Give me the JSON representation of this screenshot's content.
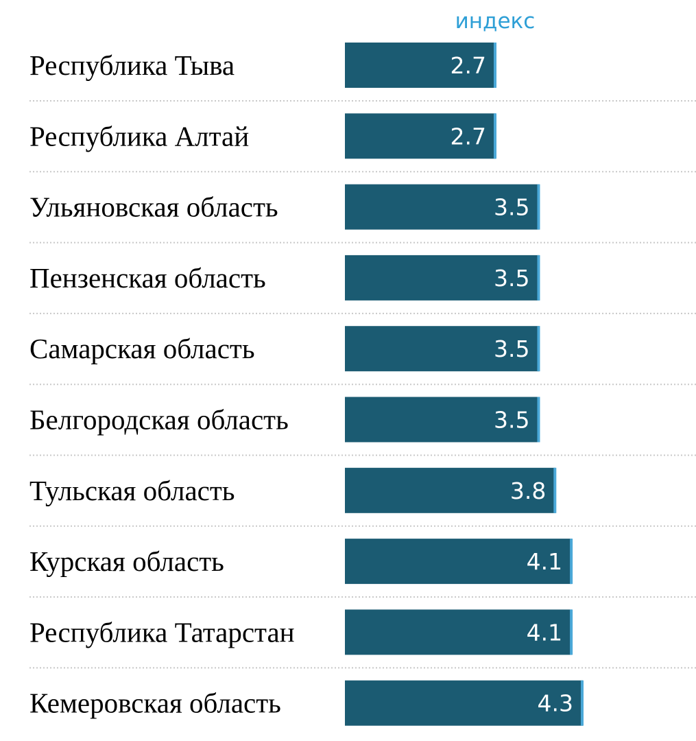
{
  "chart_data": {
    "type": "bar",
    "orientation": "horizontal",
    "column_header": "индекс",
    "categories": [
      "Республика Тыва",
      "Республика Алтай",
      "Ульяновская область",
      "Пензенская область",
      "Самарская область",
      "Белгородская область",
      "Тульская область",
      "Курская область",
      "Республика Татарстан",
      "Кемеровская область"
    ],
    "values": [
      2.7,
      2.7,
      3.5,
      3.5,
      3.5,
      3.5,
      3.8,
      4.1,
      4.1,
      4.3
    ],
    "value_labels": [
      "2.7",
      "2.7",
      "3.5",
      "3.5",
      "3.5",
      "3.5",
      "3.8",
      "4.1",
      "4.1",
      "4.3"
    ],
    "xlim": [
      0,
      4.3
    ],
    "grid": false,
    "row_separators": "dotted",
    "colors": {
      "bar": "#1b5b72",
      "bar_edge": "#4aa8d8",
      "value_text": "#ffffff",
      "header_text": "#2e9fd6",
      "category_text": "#000000",
      "separator": "#c8c8c8"
    }
  }
}
